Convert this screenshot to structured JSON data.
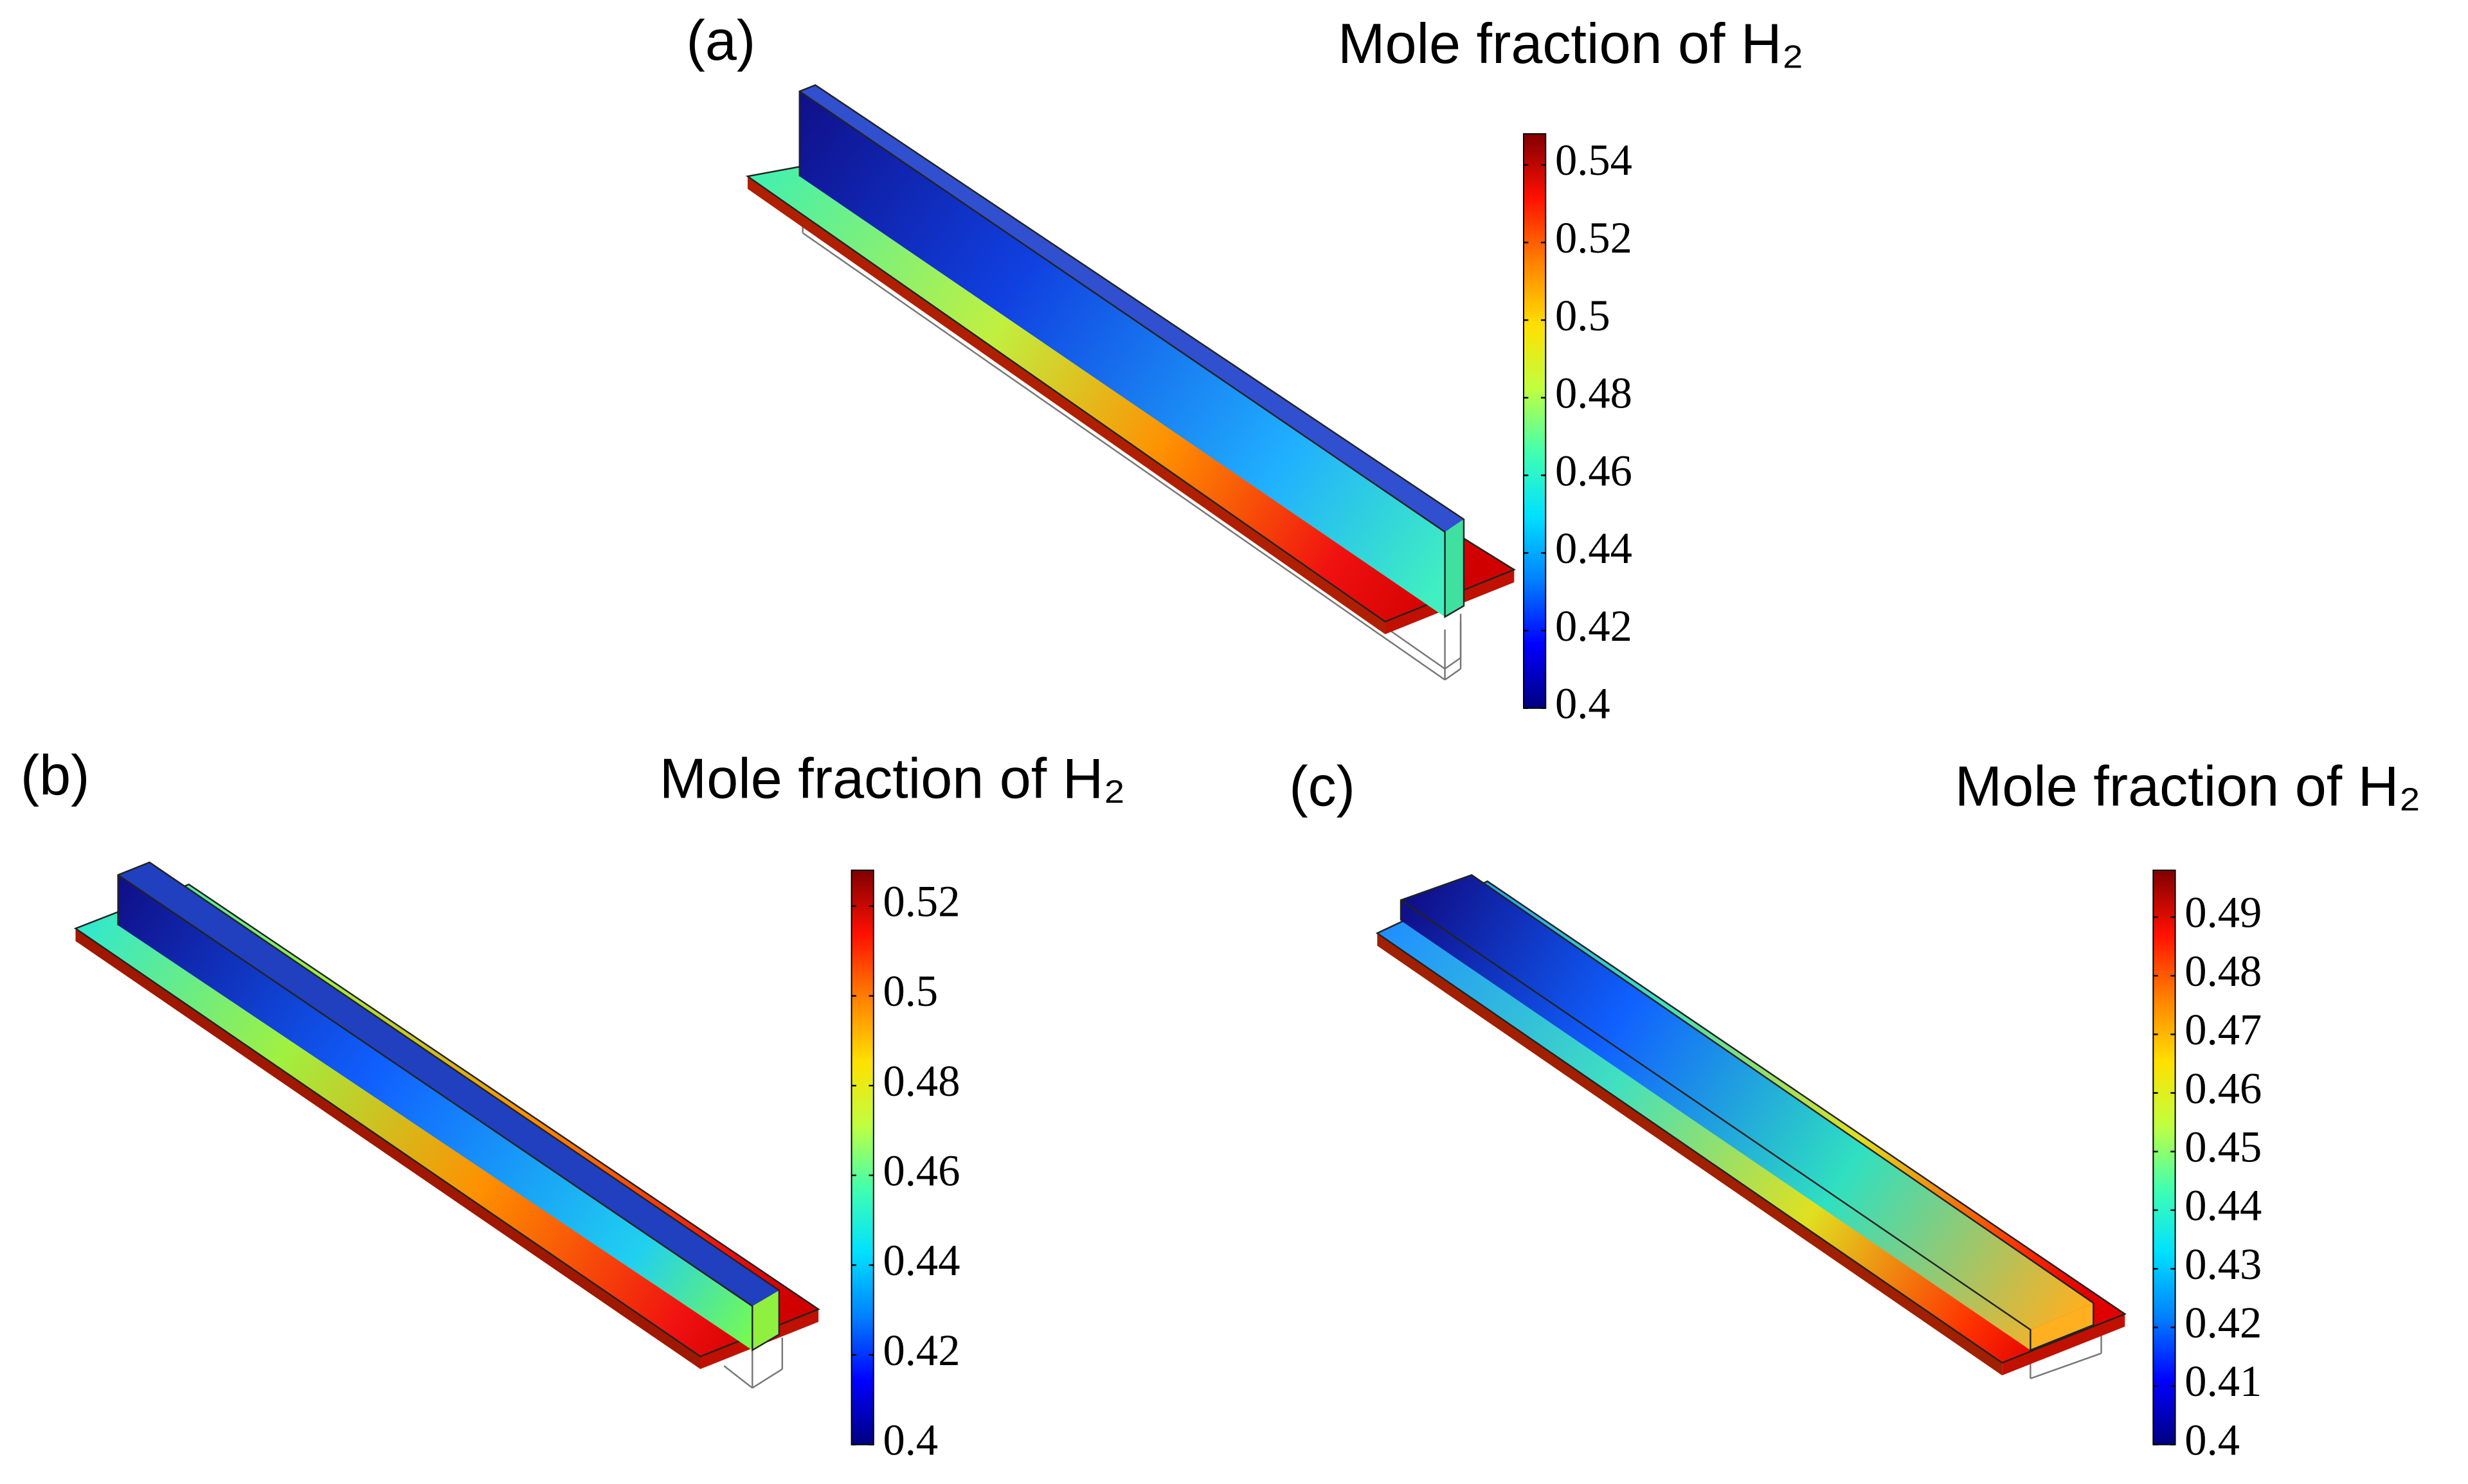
{
  "chart_data": [
    {
      "type": "contour",
      "panel_label": "(a)",
      "title": "Mole fraction of H₂",
      "colormap": [
        "#000080",
        "#0000ff",
        "#0080ff",
        "#00e0ff",
        "#40ffb0",
        "#c0ff40",
        "#ffe000",
        "#ff8000",
        "#ff1000",
        "#800000"
      ],
      "ylim": [
        0.4,
        0.548
      ],
      "yticks": [
        0.4,
        0.42,
        0.44,
        0.46,
        0.48,
        0.5,
        0.52,
        0.54
      ]
    },
    {
      "type": "contour",
      "panel_label": "(b)",
      "title": "Mole fraction of H₂",
      "colormap": [
        "#000080",
        "#0000ff",
        "#0080ff",
        "#00e0ff",
        "#40ffb0",
        "#c0ff40",
        "#ffe000",
        "#ff8000",
        "#ff1000",
        "#800000"
      ],
      "ylim": [
        0.4,
        0.528
      ],
      "yticks": [
        0.4,
        0.42,
        0.44,
        0.46,
        0.48,
        0.5,
        0.52
      ]
    },
    {
      "type": "contour",
      "panel_label": "(c)",
      "title": "Mole fraction of H₂",
      "colormap": [
        "#000080",
        "#0000ff",
        "#0080ff",
        "#00e0ff",
        "#40ffb0",
        "#c0ff40",
        "#ffe000",
        "#ff8000",
        "#ff1000",
        "#800000"
      ],
      "ylim": [
        0.4,
        0.498
      ],
      "yticks": [
        0.4,
        0.41,
        0.42,
        0.43,
        0.44,
        0.45,
        0.46,
        0.47,
        0.48,
        0.49
      ]
    }
  ]
}
